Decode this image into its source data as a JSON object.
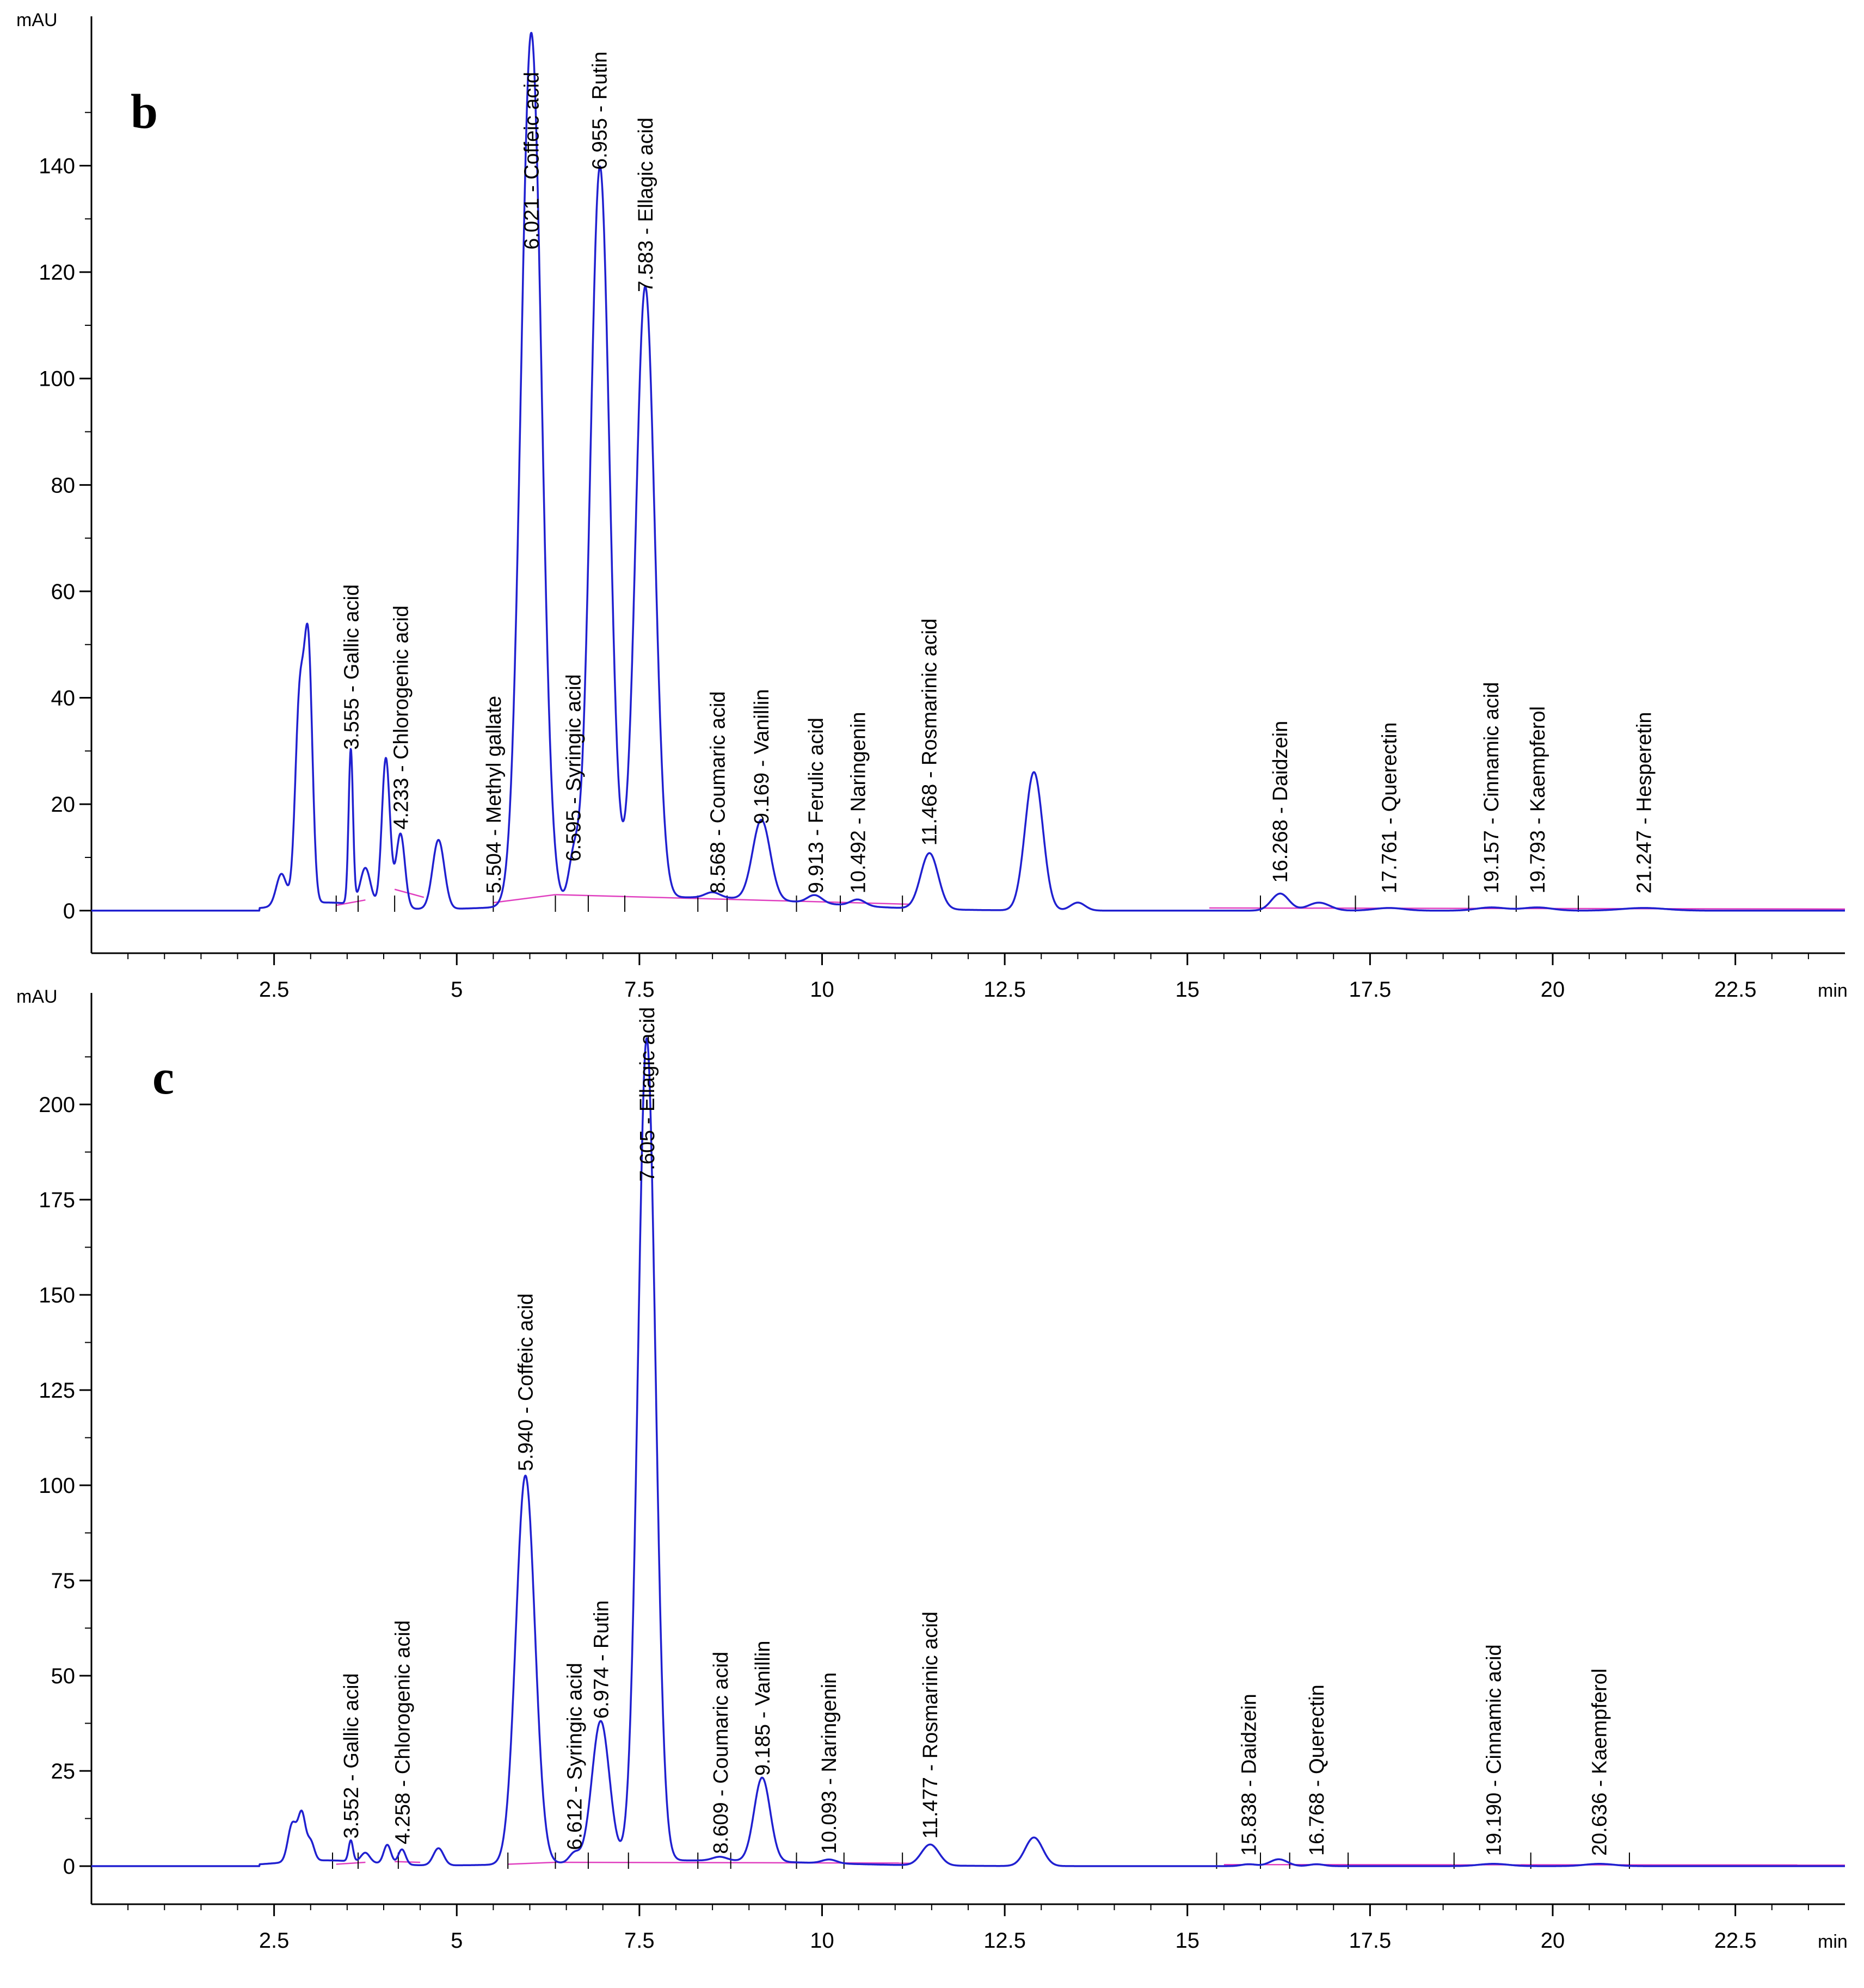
{
  "colors": {
    "trace": "#2020d0",
    "baseline": "#e040c0",
    "axis": "#000000",
    "background": "#ffffff"
  },
  "chart_data": [
    {
      "type": "line",
      "panel_label": "b",
      "ylabel": "mAU",
      "xlabel": "min",
      "xlim": [
        0,
        24
      ],
      "ylim": [
        -8,
        165
      ],
      "xticks": [
        2.5,
        5,
        7.5,
        10,
        12.5,
        15,
        17.5,
        20,
        22.5
      ],
      "xtick_labels": [
        "2.5",
        "5",
        "7.5",
        "10",
        "12.5",
        "15",
        "17.5",
        "20",
        "22.5"
      ],
      "yticks": [
        0,
        20,
        40,
        60,
        80,
        100,
        120,
        140
      ],
      "ytick_labels": [
        "0",
        "20",
        "40",
        "60",
        "80",
        "100",
        "120",
        "140"
      ],
      "peaks": [
        [
          2.6,
          6,
          0.07
        ],
        [
          2.85,
          38,
          0.06
        ],
        [
          2.97,
          46,
          0.055
        ],
        [
          3.55,
          29,
          0.03
        ],
        [
          3.75,
          7,
          0.07
        ],
        [
          4.03,
          28,
          0.055
        ],
        [
          4.23,
          14,
          0.06
        ],
        [
          4.75,
          13,
          0.08
        ],
        [
          6.02,
          164,
          0.14
        ],
        [
          6.6,
          8,
          0.07
        ],
        [
          6.96,
          138,
          0.13
        ],
        [
          7.58,
          115,
          0.13
        ],
        [
          8.5,
          1,
          0.1
        ],
        [
          9.17,
          15,
          0.12
        ],
        [
          9.9,
          1.5,
          0.1
        ],
        [
          10.49,
          1.2,
          0.1
        ],
        [
          11.47,
          10.5,
          0.12
        ],
        [
          12.9,
          26,
          0.12
        ],
        [
          13.5,
          1.5,
          0.1
        ],
        [
          16.27,
          3.2,
          0.12
        ],
        [
          16.8,
          1.5,
          0.15
        ],
        [
          17.76,
          0.5,
          0.2
        ],
        [
          19.16,
          0.6,
          0.2
        ],
        [
          19.79,
          0.6,
          0.2
        ],
        [
          21.25,
          0.5,
          0.3
        ]
      ],
      "bg_bump": [
        8.2,
        2.5,
        1.6
      ],
      "baseline_segments": [
        [
          3.35,
          1.0,
          3.75,
          2.0
        ],
        [
          4.15,
          4.0,
          4.55,
          2.5
        ],
        [
          5.5,
          1.5,
          6.35,
          3.0
        ],
        [
          6.35,
          3.0,
          11.2,
          1.2
        ],
        [
          15.3,
          0.5,
          24.0,
          0.3
        ]
      ],
      "markers": [
        3.35,
        3.65,
        4.15,
        5.5,
        6.35,
        6.8,
        7.3,
        8.3,
        8.7,
        9.65,
        10.25,
        11.1,
        16.0,
        17.3,
        18.85,
        19.5,
        20.35
      ],
      "annotations": [
        {
          "x": 3.555,
          "y": 29,
          "label": "3.555 -  Gallic acid"
        },
        {
          "x": 4.233,
          "y": 14,
          "label": "4.233 -  Chlorogenic acid"
        },
        {
          "x": 5.504,
          "y": 2,
          "label": "5.504 -  Methyl gallate"
        },
        {
          "x": 6.021,
          "y": 123,
          "label": "6.021 -  Coffeic acid"
        },
        {
          "x": 6.595,
          "y": 8,
          "label": "6.595 -  Syringic acid"
        },
        {
          "x": 6.955,
          "y": 138,
          "label": "6.955 -  Rutin"
        },
        {
          "x": 7.583,
          "y": 115,
          "label": "7.583 -  Ellagic acid"
        },
        {
          "x": 8.568,
          "y": 2,
          "label": "8.568 -  Coumaric acid"
        },
        {
          "x": 9.169,
          "y": 15,
          "label": "9.169 -  Vanillin"
        },
        {
          "x": 9.913,
          "y": 2,
          "label": "9.913 -  Ferulic acid"
        },
        {
          "x": 10.492,
          "y": 2,
          "label": "10.492 -  Naringenin"
        },
        {
          "x": 11.468,
          "y": 11,
          "label": "11.468 -  Rosmarinic acid"
        },
        {
          "x": 16.268,
          "y": 4,
          "label": "16.268 -  Daidzein"
        },
        {
          "x": 17.761,
          "y": 2,
          "label": "17.761 -  Querectin"
        },
        {
          "x": 19.157,
          "y": 2,
          "label": "19.157 -  Cinnamic acid"
        },
        {
          "x": 19.793,
          "y": 2,
          "label": "19.793 -  Kaempferol"
        },
        {
          "x": 21.247,
          "y": 2,
          "label": "21.247 -  Hesperetin"
        }
      ]
    },
    {
      "type": "line",
      "panel_label": "c",
      "ylabel": "mAU",
      "xlabel": "min",
      "xlim": [
        0,
        24
      ],
      "ylim": [
        -10,
        225
      ],
      "xticks": [
        2.5,
        5,
        7.5,
        10,
        12.5,
        15,
        17.5,
        20,
        22.5
      ],
      "xtick_labels": [
        "2.5",
        "5",
        "7.5",
        "10",
        "12.5",
        "15",
        "17.5",
        "20",
        "22.5"
      ],
      "yticks": [
        0,
        25,
        50,
        75,
        100,
        125,
        150,
        175,
        200
      ],
      "ytick_labels": [
        "0",
        "25",
        "50",
        "75",
        "100",
        "125",
        "150",
        "175",
        "200"
      ],
      "peaks": [
        [
          2.75,
          10,
          0.06
        ],
        [
          2.88,
          12,
          0.05
        ],
        [
          3.0,
          5,
          0.05
        ],
        [
          3.55,
          5.5,
          0.03
        ],
        [
          3.75,
          2.5,
          0.06
        ],
        [
          4.05,
          5,
          0.05
        ],
        [
          4.25,
          4,
          0.05
        ],
        [
          4.75,
          4.5,
          0.07
        ],
        [
          5.94,
          102,
          0.13
        ],
        [
          6.61,
          2.5,
          0.07
        ],
        [
          6.97,
          37,
          0.12
        ],
        [
          7.6,
          216,
          0.12
        ],
        [
          8.6,
          1,
          0.1
        ],
        [
          9.18,
          22,
          0.11
        ],
        [
          10.1,
          1,
          0.1
        ],
        [
          11.48,
          5.5,
          0.12
        ],
        [
          12.9,
          7.5,
          0.12
        ],
        [
          15.84,
          0.5,
          0.1
        ],
        [
          16.25,
          1.8,
          0.12
        ],
        [
          16.77,
          0.5,
          0.1
        ],
        [
          19.19,
          0.6,
          0.2
        ],
        [
          20.64,
          0.6,
          0.2
        ]
      ],
      "bg_bump": [
        8.2,
        1.5,
        1.6
      ],
      "baseline_segments": [
        [
          3.35,
          0.5,
          3.75,
          1.0
        ],
        [
          4.15,
          1.2,
          4.5,
          1.0
        ],
        [
          5.7,
          0.5,
          6.35,
          1.0
        ],
        [
          6.35,
          1.0,
          11.2,
          0.8
        ],
        [
          15.5,
          0.4,
          24.0,
          0.3
        ]
      ],
      "markers": [
        3.3,
        3.65,
        4.2,
        5.7,
        6.35,
        6.8,
        7.35,
        8.3,
        8.75,
        9.65,
        10.3,
        11.1,
        15.4,
        16.0,
        16.4,
        17.2,
        18.65,
        19.7,
        21.05
      ],
      "annotations": [
        {
          "x": 3.552,
          "y": 5.5,
          "label": "3.552 -  Gallic acid"
        },
        {
          "x": 4.258,
          "y": 4,
          "label": "4.258 -  Chlorogenic acid"
        },
        {
          "x": 5.94,
          "y": 102,
          "label": "5.940 -  Coffeic acid"
        },
        {
          "x": 6.612,
          "y": 2.5,
          "label": "6.612 -  Syringic acid"
        },
        {
          "x": 6.974,
          "y": 37,
          "label": "6.974 -  Rutin"
        },
        {
          "x": 7.605,
          "y": 178,
          "label": "7.605 -  Ellagic acid"
        },
        {
          "x": 8.609,
          "y": 1.5,
          "label": "8.609 -  Coumaric acid"
        },
        {
          "x": 9.185,
          "y": 22,
          "label": "9.185 -  Vanillin"
        },
        {
          "x": 10.093,
          "y": 1.5,
          "label": "10.093 -  Naringenin"
        },
        {
          "x": 11.477,
          "y": 5.5,
          "label": "11.477 -  Rosmarinic acid"
        },
        {
          "x": 15.838,
          "y": 1,
          "label": "15.838 -  Daidzein"
        },
        {
          "x": 16.768,
          "y": 1,
          "label": "16.768 -  Querectin"
        },
        {
          "x": 19.19,
          "y": 1,
          "label": "19.190 -  Cinnamic acid"
        },
        {
          "x": 20.636,
          "y": 1,
          "label": "20.636 -  Kaempferol"
        }
      ]
    }
  ]
}
